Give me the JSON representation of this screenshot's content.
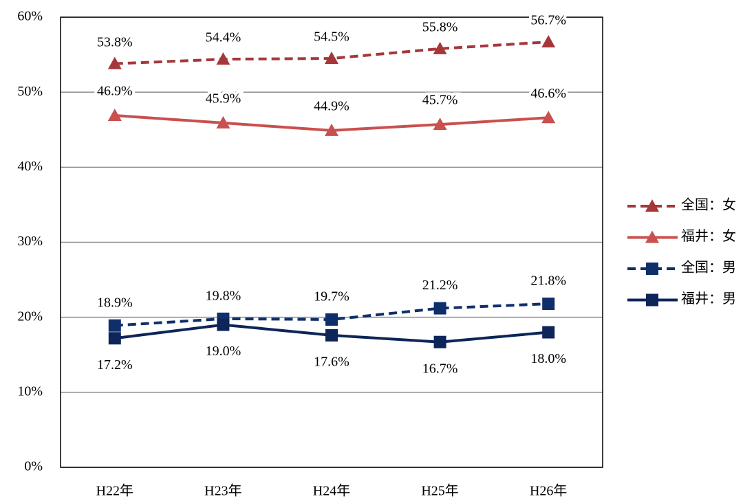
{
  "chart_data": {
    "type": "line",
    "categories": [
      "H22年",
      "H23年",
      "H24年",
      "H25年",
      "H26年"
    ],
    "series": [
      {
        "name": "全国：女",
        "color": "#a5373a",
        "dashed": true,
        "marker": "triangle",
        "values": [
          53.8,
          54.4,
          54.5,
          55.8,
          56.7
        ],
        "value_labels": [
          "53.8%",
          "54.4%",
          "54.5%",
          "55.8%",
          "56.7%"
        ]
      },
      {
        "name": "福井：女",
        "color": "#c9504e",
        "dashed": false,
        "marker": "triangle",
        "values": [
          46.9,
          45.9,
          44.9,
          45.7,
          46.6
        ],
        "value_labels": [
          "46.9%",
          "45.9%",
          "44.9%",
          "45.7%",
          "46.6%"
        ]
      },
      {
        "name": "全国：男",
        "color": "#0f2f6b",
        "dashed": true,
        "marker": "square",
        "values": [
          18.9,
          19.8,
          19.7,
          21.2,
          21.8
        ],
        "value_labels": [
          "18.9%",
          "19.8%",
          "19.7%",
          "21.2%",
          "21.8%"
        ]
      },
      {
        "name": "福井：男",
        "color": "#0d2558",
        "dashed": false,
        "marker": "square",
        "values": [
          17.2,
          19.0,
          17.6,
          16.7,
          18.0
        ],
        "value_labels": [
          "17.2%",
          "19.0%",
          "17.6%",
          "16.7%",
          "18.0%"
        ]
      }
    ],
    "ylim": [
      0,
      60
    ],
    "yticks": [
      {
        "value": 0,
        "label": "0%"
      },
      {
        "value": 10,
        "label": "10%"
      },
      {
        "value": 20,
        "label": "20%"
      },
      {
        "value": 30,
        "label": "30%"
      },
      {
        "value": 40,
        "label": "40%"
      },
      {
        "value": 50,
        "label": "50%"
      },
      {
        "value": 60,
        "label": "60%"
      }
    ],
    "grid": true,
    "legend": "right"
  }
}
